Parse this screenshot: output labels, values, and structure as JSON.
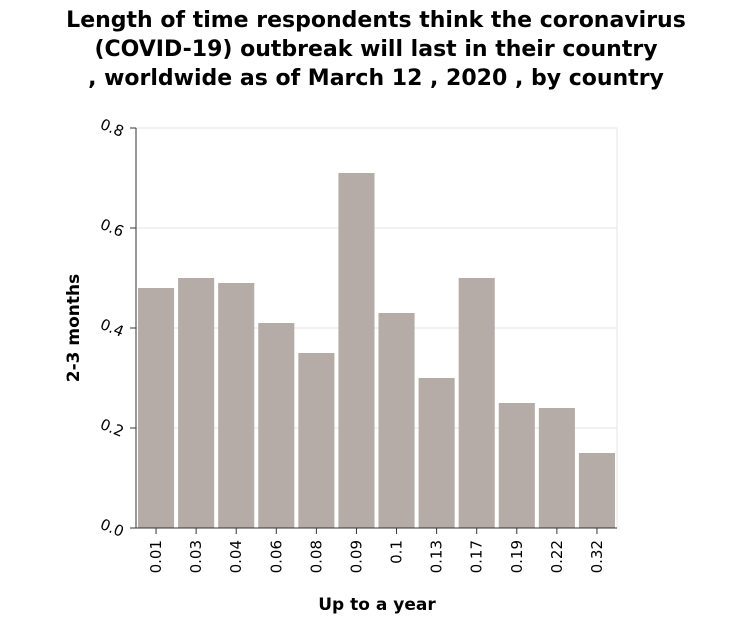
{
  "chart_data": {
    "type": "bar",
    "title": "Length of time respondents think the coronavirus (COVID-19) outbreak will last in their country , worldwide as of March 12 , 2020 , by country",
    "xlabel": "Up to a year",
    "ylabel": "2-3 months",
    "categories": [
      "0.01",
      "0.03",
      "0.04",
      "0.06",
      "0.08",
      "0.09",
      "0.1",
      "0.13",
      "0.17",
      "0.19",
      "0.22",
      "0.32"
    ],
    "values": [
      0.48,
      0.5,
      0.49,
      0.41,
      0.35,
      0.71,
      0.43,
      0.3,
      0.5,
      0.25,
      0.24,
      0.15
    ],
    "ylim": [
      0,
      0.8
    ],
    "yticks": [
      "0.0",
      "0.2",
      "0.4",
      "0.6",
      "0.8"
    ],
    "grid": true,
    "bar_color": "#b5aba7"
  }
}
